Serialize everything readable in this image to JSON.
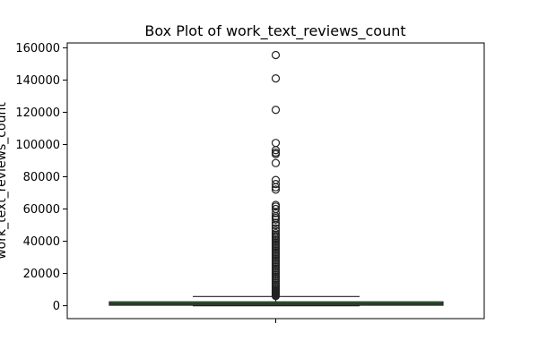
{
  "chart_data": {
    "type": "box",
    "title": "Box Plot of work_text_reviews_count",
    "xlabel": "",
    "ylabel": "work_text_reviews_count",
    "ylim": [
      -8000,
      163000
    ],
    "yticks": [
      0,
      20000,
      40000,
      60000,
      80000,
      100000,
      120000,
      140000,
      160000
    ],
    "ytick_labels": [
      "0",
      "20000",
      "40000",
      "60000",
      "80000",
      "100000",
      "120000",
      "140000",
      "160000"
    ],
    "grid": false,
    "box": {
      "q1": 300,
      "median": 1200,
      "q3": 2400,
      "whisker_low": 0,
      "whisker_high": 5700,
      "color": "#2e7d32"
    },
    "outliers": [
      155500,
      141000,
      121500,
      101000,
      96500,
      95000,
      94000,
      88500,
      78000,
      75500,
      73500,
      72000,
      62500,
      61500,
      60000,
      57500,
      55500,
      54500,
      53500,
      51500,
      50000,
      48000,
      46500,
      45000,
      44000,
      43000,
      42000,
      41000,
      40000,
      39000,
      38000,
      37000,
      36000,
      35000,
      34000,
      33000,
      32000,
      31000,
      30000,
      29000,
      28000,
      27000,
      26000,
      25000,
      24000,
      23000,
      22000,
      21000,
      20000,
      19000,
      18000,
      17000,
      16000,
      15000,
      14000,
      13000,
      12000,
      11000,
      10000,
      9500,
      9000,
      8500,
      8000,
      7500,
      7000,
      6500,
      6000
    ]
  }
}
